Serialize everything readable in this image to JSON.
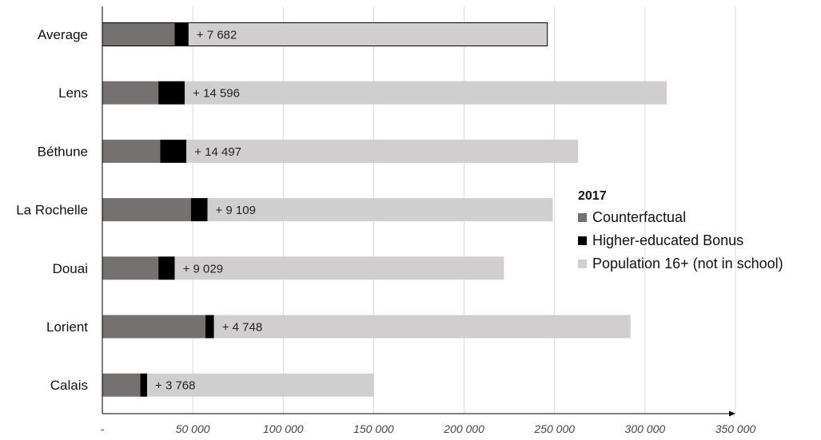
{
  "chart_data": {
    "type": "bar",
    "orientation": "horizontal",
    "stacked": true,
    "categories": [
      "Average",
      "Lens",
      "Béthune",
      "La Rochelle",
      "Douai",
      "Lorient",
      "Calais"
    ],
    "series": [
      {
        "name": "Counterfactual",
        "color": "#767171",
        "values": [
          40000,
          31000,
          32000,
          49000,
          31000,
          57000,
          21000
        ]
      },
      {
        "name": "Higher-educated Bonus",
        "color": "#000000",
        "values": [
          7682,
          14596,
          14497,
          9109,
          9029,
          4748,
          3768
        ]
      },
      {
        "name": "Population 16+ (not in school)",
        "color": "#d0cece",
        "values": [
          198318,
          266404,
          216503,
          190891,
          181971,
          230252,
          125232
        ]
      }
    ],
    "bonus_labels": [
      "+ 7 682",
      "+ 14 596",
      "+ 14 497",
      "+ 9 109",
      "+ 9 029",
      "+ 4 748",
      "+ 3 768"
    ],
    "outlined_category": "Average",
    "xlim": [
      0,
      350000
    ],
    "x_ticks": [
      0,
      50000,
      100000,
      150000,
      200000,
      250000,
      300000,
      350000
    ],
    "x_tick_labels": [
      "-",
      "50 000",
      "100 000",
      "150 000",
      "200 000",
      "250 000",
      "300 000",
      "350 000"
    ],
    "grid": "vertical",
    "legend": {
      "title": "2017",
      "placement": "right"
    }
  }
}
